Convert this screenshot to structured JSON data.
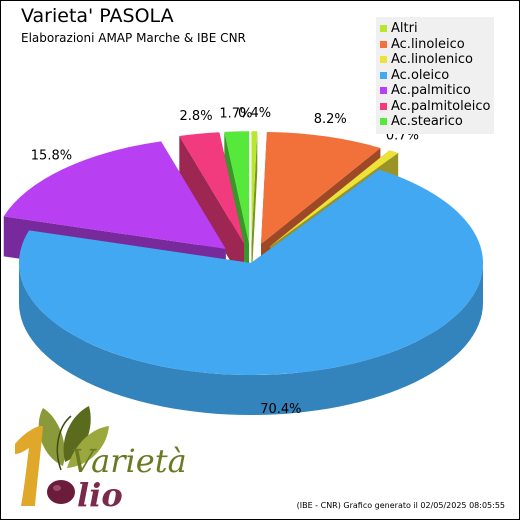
{
  "chart_data": {
    "type": "pie",
    "title": "Varieta' PASOLA",
    "subtitle": "Elaborazioni AMAP Marche & IBE CNR",
    "legend_position": "top-right",
    "slices": [
      {
        "name": "Altri",
        "value": 0.4,
        "label": "0.4%",
        "color": "#b8e82e"
      },
      {
        "name": "Ac.linoleico",
        "value": 8.2,
        "label": "8.2%",
        "color": "#f2703a"
      },
      {
        "name": "Ac.linolenico",
        "value": 0.7,
        "label": "0.7%",
        "color": "#ede23a"
      },
      {
        "name": "Ac.oleico",
        "value": 70.4,
        "label": "70.4%",
        "color": "#42a8f2"
      },
      {
        "name": "Ac.palmitico",
        "value": 15.8,
        "label": "15.8%",
        "color": "#b840f2"
      },
      {
        "name": "Ac.palmitoleico",
        "value": 2.8,
        "label": "2.8%",
        "color": "#f23a7e"
      },
      {
        "name": "Ac.stearico",
        "value": 1.7,
        "label": "1.7%",
        "color": "#56e83a"
      }
    ]
  },
  "logo": {
    "line1": "Varietà",
    "line2": "lio"
  },
  "footer": "(IBE - CNR) Grafico generato il 02/05/2025 08:05:55"
}
